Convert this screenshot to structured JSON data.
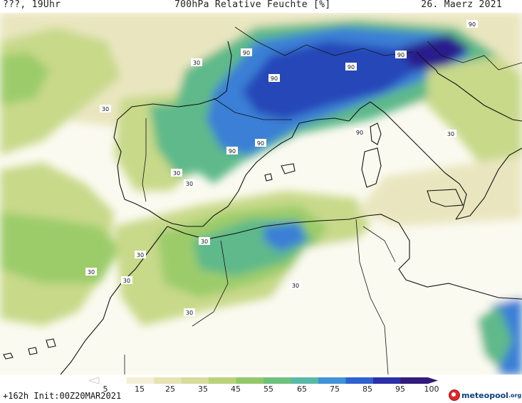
{
  "header": {
    "left": "???, 19Uhr",
    "title": "700hPa Relative Feuchte [%]",
    "date": "26. Maerz 2021"
  },
  "footer": {
    "run": "+162h  Init:00Z20MAR2021",
    "logo_main": "meteopool",
    "logo_tld": ".org"
  },
  "colorbar": {
    "ticks": [
      "5",
      "15",
      "25",
      "35",
      "45",
      "55",
      "65",
      "75",
      "85",
      "95",
      "100"
    ],
    "colors": [
      "#ffffff",
      "#f4f0d8",
      "#e8e3b4",
      "#d7dc9c",
      "#b9d27b",
      "#93c86a",
      "#6fc07c",
      "#59b9a6",
      "#3f93d6",
      "#2f61d0",
      "#2b2fa8",
      "#341a7c"
    ]
  },
  "map": {
    "contour_labels": [
      "30",
      "30",
      "30",
      "30",
      "30",
      "30",
      "30",
      "30",
      "30",
      "30",
      "90",
      "90",
      "90",
      "90",
      "90",
      "90",
      "90",
      "90"
    ],
    "colors": {
      "sea_dry": "#fbfaf0",
      "moist_pale": "#e9e6bf",
      "mid_green": "#c8d98a",
      "green": "#9ccc6a",
      "teal": "#5fb98a",
      "blue": "#3a7fd6",
      "deep_blue": "#2646b8",
      "violet": "#2a1e8c",
      "coast": "#111111"
    }
  }
}
